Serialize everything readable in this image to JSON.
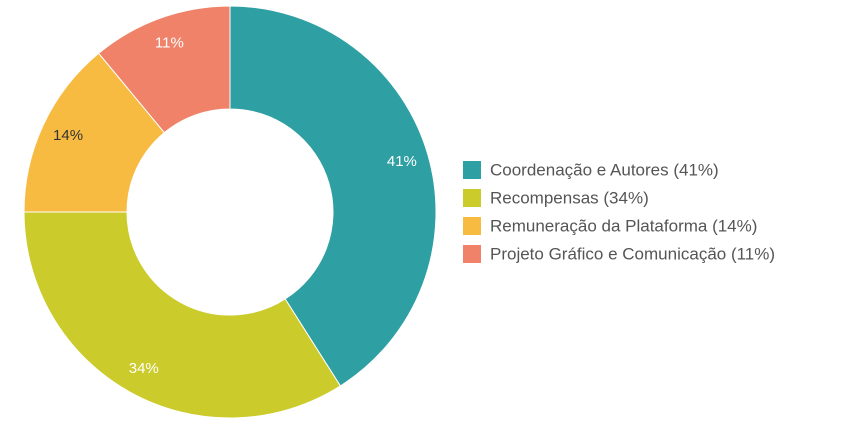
{
  "chart_data": {
    "type": "donut",
    "categories": [
      "Coordenação e Autores (41%)",
      "Recompensas (34%)",
      "Remuneração da Plataforma (14%)",
      "Projeto Gráfico e Comunicação (11%)"
    ],
    "values": [
      41,
      34,
      14,
      11
    ],
    "value_labels": [
      "41%",
      "34%",
      "14%",
      "11%"
    ],
    "colors": [
      "#2e9fa3",
      "#cbcb2b",
      "#f8bb42",
      "#f1826a"
    ],
    "label_colors": [
      "#ffffff",
      "#ffffff",
      "#333333",
      "#ffffff"
    ],
    "legend": "right"
  }
}
